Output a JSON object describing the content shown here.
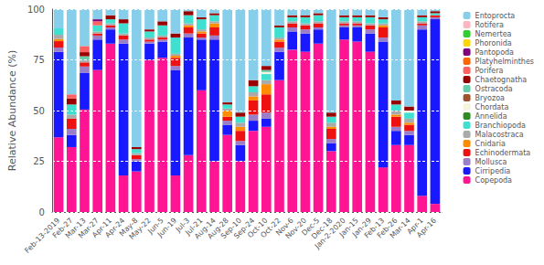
{
  "chart_data": {
    "type": "bar",
    "ylabel": "Relative Abundance (%)",
    "categories": [
      "Feb-13-2019",
      "Feb-27",
      "Mar-13",
      "Mar-27",
      "Apr-11",
      "Apr-24",
      "May-8",
      "May-22",
      "Jun-5",
      "Jun-19",
      "Jul-3",
      "Jul-21",
      "Aug-14",
      "Aug-28",
      "Sep-10",
      "Sep-24",
      "Oct-10",
      "Oct-22",
      "Nov-6",
      "Nov-20",
      "Dec-5",
      "Dec-18",
      "Jan-2-2020",
      "Jan-15",
      "Jan-29",
      "Feb-13",
      "Feb-26",
      "Mar-14",
      "Apr-1",
      "Apr-16"
    ],
    "series": [
      {
        "name": "Copepoda",
        "color": "#FF1493",
        "values": [
          36.84210526315789,
          32,
          50.505050505050505,
          70,
          83,
          18,
          20,
          75,
          76,
          18,
          28,
          60,
          25,
          38,
          25,
          40,
          42,
          65,
          80,
          79,
          83,
          30,
          85,
          84,
          79,
          22,
          33,
          33,
          8,
          4
        ]
      },
      {
        "name": "Cirripedia",
        "color": "#1919FF",
        "values": [
          42.10526315789474,
          6,
          18.181818181818183,
          15,
          7,
          65,
          5,
          8,
          8,
          52,
          58,
          25,
          60,
          5,
          8,
          5,
          4,
          14,
          9,
          9,
          7,
          4,
          6,
          7,
          9,
          62,
          7,
          5,
          82,
          91
        ]
      },
      {
        "name": "Mollusca",
        "color": "#9B7EC8",
        "values": [
          2.1052631578947367,
          3,
          3.0303030303030303,
          2,
          1,
          2,
          1,
          1,
          1,
          2,
          2,
          1,
          2,
          2,
          2,
          3,
          3,
          2,
          2,
          2,
          1,
          2,
          1,
          1,
          2,
          2,
          2,
          2,
          2,
          1
        ]
      },
      {
        "name": "Echinodermata",
        "color": "#EE1111",
        "values": [
          3.1578947368421053,
          5,
          2.0202020202020203,
          1,
          1,
          2,
          2,
          1,
          1,
          4,
          3,
          2,
          4,
          2,
          5,
          7,
          9,
          3,
          2,
          2,
          2,
          5,
          1,
          1,
          2,
          5,
          5,
          3,
          1,
          1
        ]
      },
      {
        "name": "Cnidaria",
        "color": "#FF8C00",
        "values": [
          1.0526315789473684,
          0,
          0,
          0,
          0,
          0,
          0,
          0,
          0,
          1,
          1,
          1,
          2,
          3,
          2,
          2,
          5,
          1,
          0,
          0,
          0,
          1,
          0,
          0,
          0,
          1,
          1,
          1,
          0,
          0
        ]
      },
      {
        "name": "Malacostraca",
        "color": "#AAAAAA",
        "values": [
          2.1052631578947367,
          2,
          1.0101010101010102,
          1,
          1,
          1,
          1,
          1,
          1,
          1,
          1,
          1,
          1,
          1,
          2,
          2,
          2,
          1,
          1,
          1,
          1,
          2,
          1,
          1,
          1,
          1,
          2,
          2,
          1,
          0
        ]
      },
      {
        "name": "Branchiopoda",
        "color": "#40E0D0",
        "values": [
          3.1578947368421053,
          5,
          0,
          3,
          2,
          5,
          2,
          3,
          5,
          8,
          4,
          5,
          3,
          2,
          3,
          3,
          3,
          5,
          2,
          3,
          3,
          3,
          2,
          2,
          3,
          2,
          3,
          3,
          2,
          1
        ]
      },
      {
        "name": "Annelida",
        "color": "#2E8B22",
        "values": [
          0,
          0,
          0,
          0,
          0,
          0,
          0,
          0,
          0,
          0,
          0,
          0,
          0,
          0,
          0,
          0,
          0,
          0,
          0,
          0,
          0,
          0,
          0,
          0,
          0,
          0,
          0,
          0,
          0,
          0
        ]
      },
      {
        "name": "Chordata",
        "color": "#F5F5DC",
        "values": [
          0,
          0,
          0,
          0,
          0,
          0,
          0,
          0,
          0,
          0,
          0,
          0,
          0,
          0,
          0,
          0,
          1,
          0,
          0,
          0,
          0,
          0,
          0,
          0,
          0,
          0,
          0,
          1,
          0,
          0
        ]
      },
      {
        "name": "Bryozoa",
        "color": "#A0522D",
        "values": [
          0,
          0,
          0,
          0,
          0,
          0,
          0,
          0,
          0,
          0,
          0,
          0,
          0,
          0,
          0,
          0,
          0,
          0,
          0,
          0,
          0,
          0,
          0,
          0,
          0,
          0,
          0,
          0,
          0,
          0
        ]
      },
      {
        "name": "Ostracoda",
        "color": "#66CDAA",
        "values": [
          0,
          0,
          2.0202020202020203,
          0,
          0,
          0,
          0,
          0,
          0,
          0,
          0,
          0,
          0,
          0,
          0,
          0,
          1,
          0,
          0,
          0,
          0,
          0,
          0,
          0,
          0,
          0,
          0,
          0,
          0,
          0
        ]
      },
      {
        "name": "Chaetognatha",
        "color": "#990000",
        "values": [
          0,
          3,
          2.0202020202020203,
          0,
          2,
          2,
          1,
          1,
          2,
          2,
          2,
          1,
          1,
          1,
          2,
          3,
          2,
          1,
          1,
          1,
          1,
          2,
          1,
          1,
          1,
          1,
          2,
          2,
          1,
          1
        ]
      },
      {
        "name": "Porifera",
        "color": "#FF6060",
        "values": [
          0,
          2,
          3.0303030303030303,
          2,
          0,
          0,
          0,
          0,
          0,
          0,
          0,
          0,
          0,
          0,
          0,
          0,
          0,
          0,
          0,
          0,
          0,
          0,
          0,
          0,
          0,
          0,
          0,
          0,
          0,
          0
        ]
      },
      {
        "name": "Platyhelminthes",
        "color": "#FF6600",
        "values": [
          0,
          0,
          0,
          0,
          0,
          0,
          0,
          0,
          0,
          0,
          0,
          0,
          0,
          0,
          0,
          0,
          0,
          0,
          0,
          0,
          0,
          0,
          0,
          0,
          0,
          0,
          0,
          0,
          0,
          0
        ]
      },
      {
        "name": "Pantopoda",
        "color": "#800080",
        "values": [
          0,
          0,
          0,
          1,
          0,
          0,
          0,
          0,
          0,
          0,
          0,
          0,
          0,
          0,
          0,
          0,
          0,
          0,
          0,
          0,
          0,
          0,
          0,
          0,
          0,
          0,
          0,
          0,
          0,
          0
        ]
      },
      {
        "name": "Phoronida",
        "color": "#FFD700",
        "values": [
          0,
          0,
          0,
          0,
          0,
          0,
          0,
          0,
          0,
          0,
          0,
          0,
          0,
          0,
          0,
          0,
          0,
          0,
          0,
          0,
          0,
          0,
          0,
          0,
          0,
          0,
          0,
          0,
          0,
          0
        ]
      },
      {
        "name": "Nemertea",
        "color": "#32CD32",
        "values": [
          0,
          0,
          0,
          0,
          0,
          0,
          0,
          0,
          0,
          0,
          0,
          0,
          0,
          0,
          0,
          0,
          0,
          0,
          0,
          0,
          0,
          0,
          0,
          0,
          0,
          0,
          0,
          0,
          0,
          0
        ]
      },
      {
        "name": "Rotifera",
        "color": "#FFB6C1",
        "values": [
          0,
          0,
          0,
          0,
          0,
          0,
          0,
          0,
          0,
          0,
          0,
          0,
          0,
          0,
          0,
          0,
          0,
          0,
          0,
          0,
          0,
          0,
          0,
          0,
          0,
          0,
          0,
          0,
          0,
          0
        ]
      },
      {
        "name": "Entoprocta",
        "color": "#87CEEB",
        "values": [
          9.473684210526315,
          42,
          18.181818181818183,
          5,
          3,
          5,
          68,
          10,
          6,
          12,
          1,
          4,
          2,
          46,
          51,
          35,
          28,
          8,
          3,
          3,
          2,
          51,
          3,
          3,
          3,
          4,
          45,
          48,
          3,
          1
        ]
      }
    ],
    "ylim": [
      0,
      100
    ],
    "yticks": [
      0,
      25,
      50,
      75,
      100
    ],
    "stacked": true,
    "grid": true,
    "legend": "right"
  }
}
